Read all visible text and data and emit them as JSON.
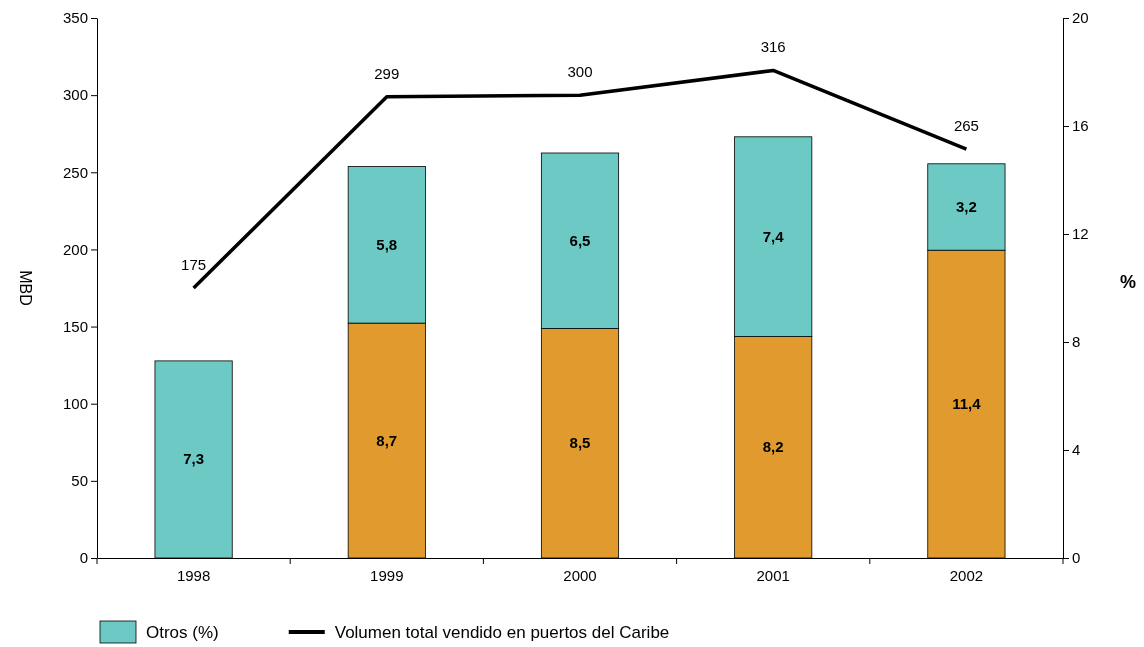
{
  "chart_data": {
    "type": "bar",
    "categories": [
      "1998",
      "1999",
      "2000",
      "2001",
      "2002"
    ],
    "stacked": true,
    "ylabel": "MBD",
    "y2label": "%",
    "ylim": [
      0,
      350
    ],
    "yticks": [
      0,
      50,
      100,
      150,
      200,
      250,
      300,
      350
    ],
    "y2lim": [
      0,
      20
    ],
    "y2ticks": [
      0,
      4,
      8,
      12,
      16,
      20
    ],
    "legend": "bottom",
    "grid": false,
    "series": [
      {
        "color": "#e09a2e",
        "values": [
          null,
          8.7,
          8.5,
          8.2,
          11.4
        ],
        "value_labels": [
          null,
          "8,7",
          "8,5",
          "8,2",
          "11,4"
        ],
        "axis": "y2"
      },
      {
        "name": "Otros (%)",
        "color": "#6cc9c4",
        "values": [
          7.3,
          5.8,
          6.5,
          7.4,
          3.2
        ],
        "value_labels": [
          "7,3",
          "5,8",
          "6,5",
          "7,4",
          "3,2"
        ],
        "axis": "y2"
      },
      {
        "type": "line",
        "name": "Volumen total vendido en puertos del Caribe",
        "color": "#000000",
        "values": [
          175,
          299,
          300,
          316,
          265
        ],
        "value_labels": [
          "175",
          "299",
          "300",
          "316",
          "265"
        ],
        "axis": "y"
      }
    ]
  }
}
